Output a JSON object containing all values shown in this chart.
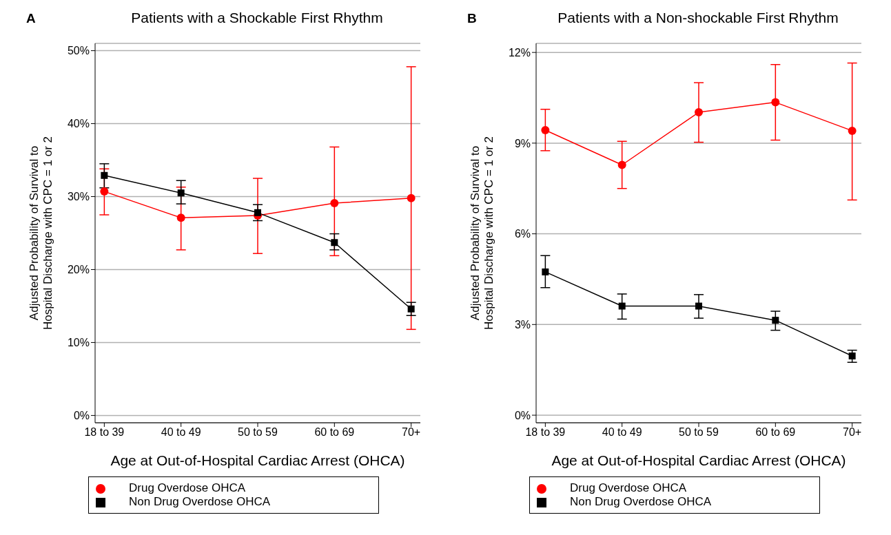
{
  "chart_data": [
    {
      "type": "line",
      "title": "Patients with a Shockable First Rhythm",
      "xlabel": "Age at Out-of-Hospital Cardiac Arrest (OHCA)",
      "ylabel": "Adjusted Probability of Survival to\nHospital Discharge with CPC = 1 or 2",
      "annotations": [
        "A"
      ],
      "categories": [
        "18 to 39",
        "40 to 49",
        "50 to 59",
        "60 to 69",
        "70+"
      ],
      "ylim": [
        -1,
        51
      ],
      "yticks": [
        {
          "value": 0,
          "label": "0%"
        },
        {
          "value": 10,
          "label": "10%"
        },
        {
          "value": 20,
          "label": "20%"
        },
        {
          "value": 30,
          "label": "30%"
        },
        {
          "value": 40,
          "label": "40%"
        },
        {
          "value": 50,
          "label": "50%"
        }
      ],
      "grid": "y",
      "legend": "bottom",
      "series": [
        {
          "name": "Non Drug Overdose OHCA",
          "color": "#000000",
          "marker": "square",
          "values": [
            32.9,
            30.5,
            27.8,
            23.7,
            14.6
          ],
          "errors": [
            [
              31.2,
              34.5
            ],
            [
              29.0,
              32.2
            ],
            [
              26.7,
              28.9
            ],
            [
              22.7,
              24.9
            ],
            [
              13.7,
              15.5
            ]
          ]
        },
        {
          "name": "Drug Overdose OHCA",
          "color": "#ff0000",
          "marker": "circle",
          "values": [
            30.7,
            27.1,
            27.4,
            29.1,
            29.8
          ],
          "errors": [
            [
              27.5,
              33.8
            ],
            [
              22.7,
              31.3
            ],
            [
              22.2,
              32.5
            ],
            [
              21.9,
              36.8
            ],
            [
              11.8,
              47.8
            ]
          ]
        }
      ]
    },
    {
      "type": "line",
      "title": "Patients with a Non-shockable First Rhythm",
      "xlabel": "Age at Out-of-Hospital Cardiac Arrest (OHCA)",
      "ylabel": "Adjusted Probability of Survival to\nHospital Discharge with CPC = 1 or 2",
      "annotations": [
        "B"
      ],
      "categories": [
        "18 to 39",
        "40 to 49",
        "50 to 59",
        "60 to 69",
        "70+"
      ],
      "ylim": [
        -0.25,
        12.3
      ],
      "yticks": [
        {
          "value": 0,
          "label": "0%"
        },
        {
          "value": 3,
          "label": "3%"
        },
        {
          "value": 6,
          "label": "6%"
        },
        {
          "value": 9,
          "label": "9%"
        },
        {
          "value": 12,
          "label": "12%"
        }
      ],
      "grid": "y",
      "legend": "bottom",
      "series": [
        {
          "name": "Non Drug Overdose OHCA",
          "color": "#000000",
          "marker": "square",
          "values": [
            4.74,
            3.61,
            3.61,
            3.14,
            1.96
          ],
          "errors": [
            [
              4.22,
              5.28
            ],
            [
              3.18,
              4.01
            ],
            [
              3.21,
              3.99
            ],
            [
              2.81,
              3.44
            ],
            [
              1.75,
              2.15
            ]
          ]
        },
        {
          "name": "Drug Overdose OHCA",
          "color": "#ff0000",
          "marker": "circle",
          "values": [
            9.43,
            8.28,
            10.02,
            10.35,
            9.41
          ],
          "errors": [
            [
              8.75,
              10.12
            ],
            [
              7.5,
              9.06
            ],
            [
              9.03,
              11.0
            ],
            [
              9.1,
              11.6
            ],
            [
              7.12,
              11.65
            ]
          ]
        }
      ]
    }
  ]
}
